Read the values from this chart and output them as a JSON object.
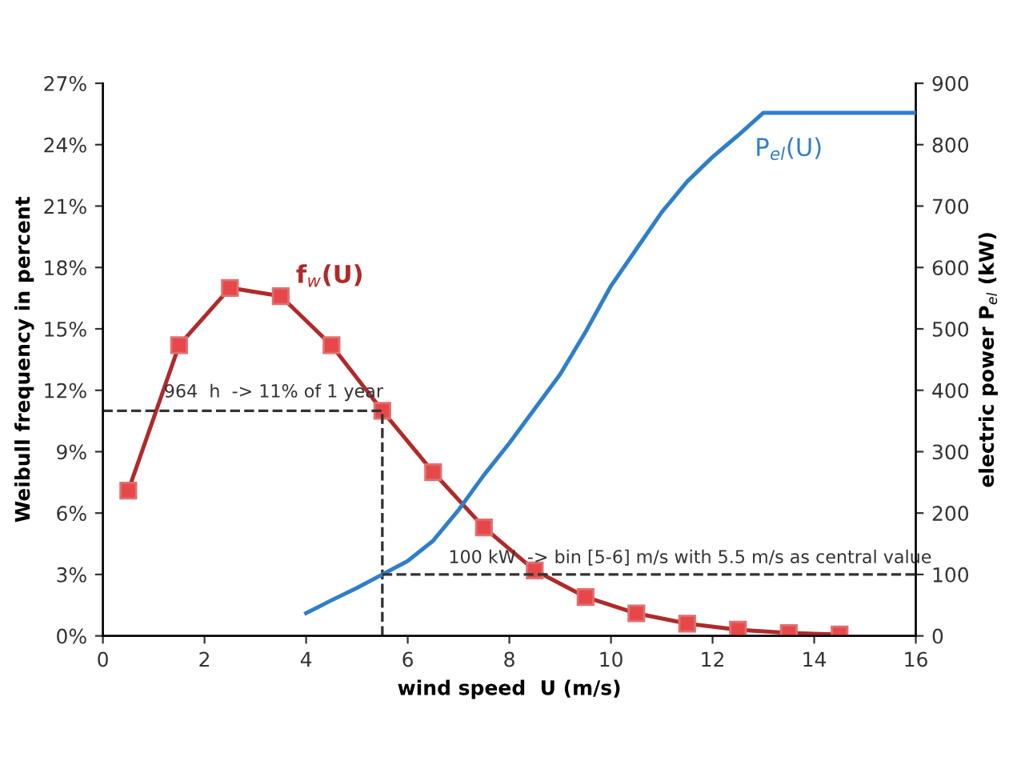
{
  "chart_data": {
    "type": "line",
    "xlabel": "wind speed  U (m/s)",
    "ylabel": "Weibull frequency in percent",
    "y2label": "electric power P$_{el}$ (kW)",
    "xlim": [
      0,
      16
    ],
    "xticks": [
      0,
      2,
      4,
      6,
      8,
      10,
      12,
      14,
      16
    ],
    "ylim": [
      0,
      27
    ],
    "yticks": [
      {
        "value": 0,
        "label": "0%"
      },
      {
        "value": 3,
        "label": "3%"
      },
      {
        "value": 6,
        "label": "6%"
      },
      {
        "value": 9,
        "label": "9%"
      },
      {
        "value": 12,
        "label": "12%"
      },
      {
        "value": 15,
        "label": "15%"
      },
      {
        "value": 18,
        "label": "18%"
      },
      {
        "value": 21,
        "label": "21%"
      },
      {
        "value": 24,
        "label": "24%"
      },
      {
        "value": 27,
        "label": "27%"
      }
    ],
    "y2lim": [
      0,
      900
    ],
    "y2ticks": [
      0,
      100,
      200,
      300,
      400,
      500,
      600,
      700,
      800,
      900
    ],
    "grid": false,
    "legend": false,
    "series": [
      {
        "name": "f$_{w}$(U)",
        "color": "#b02a2a",
        "marker": "square",
        "x": [
          0.5,
          1.5,
          2.5,
          3.5,
          4.5,
          5.5,
          6.5,
          7.5,
          8.5,
          9.5,
          10.5,
          11.5,
          12.5,
          13.5,
          14.5
        ],
        "values": [
          7.1,
          14.2,
          17.0,
          16.6,
          14.2,
          11.0,
          8.0,
          5.3,
          3.2,
          1.9,
          1.1,
          0.6,
          0.3,
          0.14,
          0.07
        ]
      },
      {
        "name": "P$_{el}$(U)",
        "color": "#2f7fc8",
        "axis": "y2",
        "marker": "none",
        "x": [
          4,
          4.5,
          5,
          5.5,
          6,
          6.5,
          7,
          7.5,
          8,
          8.5,
          9,
          9.5,
          10,
          10.5,
          11,
          11.5,
          12,
          12.5,
          13,
          16
        ],
        "values": [
          37,
          58,
          78,
          100,
          122,
          155,
          205,
          262,
          314,
          370,
          426,
          495,
          570,
          630,
          690,
          740,
          780,
          815,
          852,
          852
        ]
      },
      {
        "color": "#333333",
        "marker": "none",
        "line_style": "dashed",
        "x": [
          0,
          5.5,
          5.5
        ],
        "values": [
          11,
          11,
          0
        ]
      },
      {
        "color": "#333333",
        "axis": "y2",
        "marker": "none",
        "line_style": "dashed",
        "x": [
          5.5,
          16
        ],
        "values": [
          100,
          100
        ]
      }
    ],
    "annotations": [
      "964  h  -> 11% of 1 year",
      "100 kW  -> bin [5-6] m/s with 5.5 m/s as central value"
    ]
  }
}
